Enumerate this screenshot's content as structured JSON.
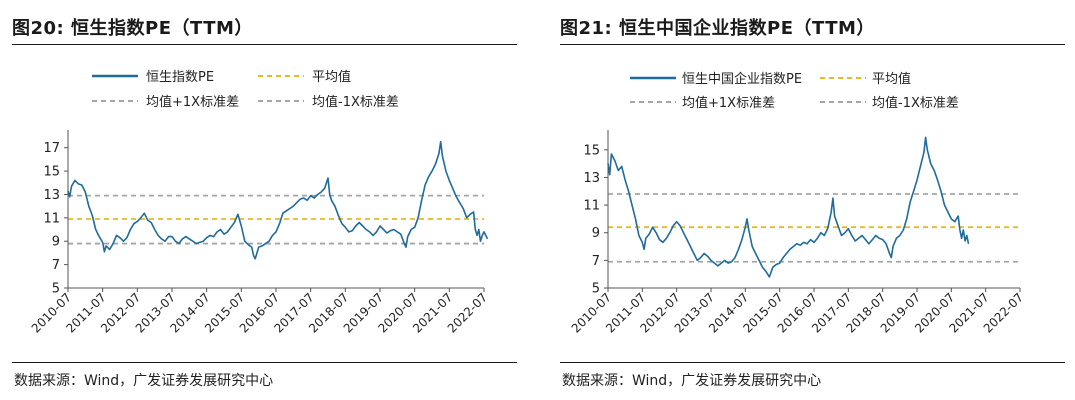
{
  "colors": {
    "series": "#1f6b9c",
    "mean": "#e8b923",
    "band": "#a6a6a6",
    "axis": "#555555"
  },
  "legend_labels": {
    "series_left": "恒生指数PE",
    "series_right": "恒生中国企业指数PE",
    "mean": "平均值",
    "upper": "均值+1X标准差",
    "lower": "均值-1X标准差"
  },
  "source_text": "数据来源：Wind，广发证券发展研究中心",
  "chart_data": [
    {
      "title": "图20:  恒生指数PE（TTM）",
      "type": "line",
      "x_ticks": [
        "2010-07",
        "2011-07",
        "2012-07",
        "2013-07",
        "2014-07",
        "2015-07",
        "2016-07",
        "2017-07",
        "2018-07",
        "2019-07",
        "2020-07",
        "2021-07",
        "2022-07"
      ],
      "ylim": [
        5,
        18
      ],
      "y_ticks": [
        5,
        7,
        9,
        11,
        13,
        15,
        17
      ],
      "grid": false,
      "legend_position": "top",
      "reference_lines": {
        "mean": 10.9,
        "mean_plus_1sd": 12.9,
        "mean_minus_1sd": 8.8
      },
      "series": [
        {
          "name": "恒生指数PE",
          "points": [
            [
              0.0,
              13.3
            ],
            [
              0.05,
              12.8
            ],
            [
              0.1,
              13.7
            ],
            [
              0.2,
              14.2
            ],
            [
              0.3,
              13.9
            ],
            [
              0.4,
              13.8
            ],
            [
              0.5,
              13.2
            ],
            [
              0.6,
              12.0
            ],
            [
              0.7,
              11.2
            ],
            [
              0.8,
              10.0
            ],
            [
              0.9,
              9.4
            ],
            [
              1.0,
              8.9
            ],
            [
              1.05,
              8.1
            ],
            [
              1.1,
              8.6
            ],
            [
              1.2,
              8.3
            ],
            [
              1.3,
              8.8
            ],
            [
              1.4,
              9.5
            ],
            [
              1.5,
              9.3
            ],
            [
              1.6,
              9.0
            ],
            [
              1.7,
              9.3
            ],
            [
              1.8,
              10.0
            ],
            [
              1.9,
              10.5
            ],
            [
              2.0,
              10.7
            ],
            [
              2.1,
              11.0
            ],
            [
              2.2,
              11.4
            ],
            [
              2.3,
              10.8
            ],
            [
              2.4,
              10.6
            ],
            [
              2.5,
              10.0
            ],
            [
              2.6,
              9.5
            ],
            [
              2.7,
              9.2
            ],
            [
              2.8,
              9.0
            ],
            [
              2.9,
              9.4
            ],
            [
              3.0,
              9.4
            ],
            [
              3.1,
              9.0
            ],
            [
              3.2,
              8.8
            ],
            [
              3.3,
              9.2
            ],
            [
              3.4,
              9.4
            ],
            [
              3.5,
              9.2
            ],
            [
              3.6,
              9.0
            ],
            [
              3.7,
              8.8
            ],
            [
              3.8,
              8.9
            ],
            [
              3.9,
              9.0
            ],
            [
              4.0,
              9.3
            ],
            [
              4.1,
              9.5
            ],
            [
              4.2,
              9.4
            ],
            [
              4.3,
              9.8
            ],
            [
              4.4,
              10.0
            ],
            [
              4.5,
              9.6
            ],
            [
              4.6,
              9.8
            ],
            [
              4.7,
              10.2
            ],
            [
              4.8,
              10.6
            ],
            [
              4.9,
              11.3
            ],
            [
              5.0,
              10.3
            ],
            [
              5.1,
              9.0
            ],
            [
              5.2,
              8.7
            ],
            [
              5.3,
              8.5
            ],
            [
              5.35,
              7.8
            ],
            [
              5.4,
              7.5
            ],
            [
              5.5,
              8.5
            ],
            [
              5.6,
              8.6
            ],
            [
              5.7,
              8.8
            ],
            [
              5.8,
              9.0
            ],
            [
              5.9,
              9.5
            ],
            [
              6.0,
              9.8
            ],
            [
              6.1,
              10.5
            ],
            [
              6.2,
              11.4
            ],
            [
              6.3,
              11.6
            ],
            [
              6.4,
              11.8
            ],
            [
              6.5,
              12.0
            ],
            [
              6.6,
              12.3
            ],
            [
              6.7,
              12.6
            ],
            [
              6.8,
              12.7
            ],
            [
              6.9,
              12.5
            ],
            [
              7.0,
              12.9
            ],
            [
              7.1,
              12.7
            ],
            [
              7.2,
              13.0
            ],
            [
              7.3,
              13.2
            ],
            [
              7.4,
              13.5
            ],
            [
              7.5,
              14.4
            ],
            [
              7.55,
              13.0
            ],
            [
              7.6,
              12.5
            ],
            [
              7.7,
              12.0
            ],
            [
              7.8,
              11.2
            ],
            [
              7.9,
              10.5
            ],
            [
              8.0,
              10.2
            ],
            [
              8.1,
              9.8
            ],
            [
              8.2,
              9.9
            ],
            [
              8.3,
              10.3
            ],
            [
              8.4,
              10.6
            ],
            [
              8.5,
              10.3
            ],
            [
              8.6,
              10.0
            ],
            [
              8.7,
              9.8
            ],
            [
              8.8,
              9.5
            ],
            [
              8.9,
              9.8
            ],
            [
              9.0,
              10.3
            ],
            [
              9.1,
              10.0
            ],
            [
              9.2,
              9.7
            ],
            [
              9.3,
              9.9
            ],
            [
              9.4,
              10.0
            ],
            [
              9.5,
              9.8
            ],
            [
              9.6,
              9.6
            ],
            [
              9.7,
              8.8
            ],
            [
              9.75,
              8.5
            ],
            [
              9.8,
              9.4
            ],
            [
              9.9,
              10.0
            ],
            [
              10.0,
              10.2
            ],
            [
              10.1,
              11.0
            ],
            [
              10.2,
              12.5
            ],
            [
              10.3,
              13.8
            ],
            [
              10.4,
              14.5
            ],
            [
              10.5,
              15.0
            ],
            [
              10.6,
              15.6
            ],
            [
              10.7,
              16.5
            ],
            [
              10.75,
              17.5
            ],
            [
              10.8,
              16.3
            ],
            [
              10.9,
              15.0
            ],
            [
              11.0,
              14.2
            ],
            [
              11.1,
              13.5
            ],
            [
              11.2,
              12.8
            ],
            [
              11.3,
              12.3
            ],
            [
              11.4,
              11.8
            ],
            [
              11.5,
              11.0
            ],
            [
              11.6,
              11.3
            ],
            [
              11.7,
              11.5
            ],
            [
              11.75,
              10.0
            ],
            [
              11.8,
              9.5
            ],
            [
              11.85,
              10.0
            ],
            [
              11.9,
              9.0
            ],
            [
              11.95,
              9.5
            ],
            [
              12.0,
              9.8
            ],
            [
              12.1,
              9.2
            ]
          ]
        }
      ]
    },
    {
      "title": "图21:  恒生中国企业指数PE（TTM）",
      "type": "line",
      "x_ticks": [
        "2010-07",
        "2011-07",
        "2012-07",
        "2013-07",
        "2014-07",
        "2015-07",
        "2016-07",
        "2017-07",
        "2018-07",
        "2019-07",
        "2020-07",
        "2021-07",
        "2022-07"
      ],
      "ylim": [
        5,
        16
      ],
      "y_ticks": [
        5,
        7,
        9,
        11,
        13,
        15
      ],
      "grid": false,
      "legend_position": "top",
      "reference_lines": {
        "mean": 9.4,
        "mean_plus_1sd": 11.8,
        "mean_minus_1sd": 6.9
      },
      "series": [
        {
          "name": "恒生中国企业指数PE",
          "points": [
            [
              0.0,
              14.0
            ],
            [
              0.05,
              13.2
            ],
            [
              0.1,
              14.7
            ],
            [
              0.2,
              14.2
            ],
            [
              0.3,
              13.5
            ],
            [
              0.4,
              13.8
            ],
            [
              0.5,
              12.8
            ],
            [
              0.6,
              12.0
            ],
            [
              0.7,
              11.0
            ],
            [
              0.8,
              10.0
            ],
            [
              0.9,
              8.8
            ],
            [
              1.0,
              8.3
            ],
            [
              1.05,
              7.8
            ],
            [
              1.1,
              8.6
            ],
            [
              1.2,
              8.9
            ],
            [
              1.3,
              9.4
            ],
            [
              1.4,
              9.0
            ],
            [
              1.5,
              8.5
            ],
            [
              1.6,
              8.3
            ],
            [
              1.7,
              8.6
            ],
            [
              1.8,
              9.0
            ],
            [
              1.9,
              9.5
            ],
            [
              2.0,
              9.8
            ],
            [
              2.1,
              9.5
            ],
            [
              2.2,
              9.0
            ],
            [
              2.3,
              8.5
            ],
            [
              2.4,
              8.0
            ],
            [
              2.5,
              7.5
            ],
            [
              2.6,
              7.0
            ],
            [
              2.7,
              7.2
            ],
            [
              2.8,
              7.5
            ],
            [
              2.9,
              7.3
            ],
            [
              3.0,
              7.0
            ],
            [
              3.1,
              6.8
            ],
            [
              3.2,
              6.6
            ],
            [
              3.3,
              6.8
            ],
            [
              3.4,
              7.0
            ],
            [
              3.5,
              6.8
            ],
            [
              3.6,
              6.9
            ],
            [
              3.7,
              7.2
            ],
            [
              3.8,
              7.8
            ],
            [
              3.9,
              8.5
            ],
            [
              4.0,
              9.4
            ],
            [
              4.05,
              10.0
            ],
            [
              4.1,
              9.2
            ],
            [
              4.2,
              8.0
            ],
            [
              4.3,
              7.5
            ],
            [
              4.4,
              7.0
            ],
            [
              4.5,
              6.5
            ],
            [
              4.6,
              6.2
            ],
            [
              4.7,
              5.8
            ],
            [
              4.8,
              6.5
            ],
            [
              4.9,
              6.7
            ],
            [
              5.0,
              6.8
            ],
            [
              5.1,
              7.2
            ],
            [
              5.2,
              7.5
            ],
            [
              5.3,
              7.8
            ],
            [
              5.4,
              8.0
            ],
            [
              5.5,
              8.2
            ],
            [
              5.6,
              8.1
            ],
            [
              5.7,
              8.3
            ],
            [
              5.8,
              8.2
            ],
            [
              5.9,
              8.5
            ],
            [
              6.0,
              8.3
            ],
            [
              6.1,
              8.6
            ],
            [
              6.2,
              9.0
            ],
            [
              6.3,
              8.8
            ],
            [
              6.4,
              9.3
            ],
            [
              6.5,
              10.5
            ],
            [
              6.55,
              11.5
            ],
            [
              6.6,
              10.2
            ],
            [
              6.7,
              9.5
            ],
            [
              6.8,
              8.8
            ],
            [
              6.9,
              9.0
            ],
            [
              7.0,
              9.3
            ],
            [
              7.1,
              8.8
            ],
            [
              7.2,
              8.4
            ],
            [
              7.3,
              8.6
            ],
            [
              7.4,
              8.8
            ],
            [
              7.5,
              8.5
            ],
            [
              7.6,
              8.2
            ],
            [
              7.7,
              8.5
            ],
            [
              7.8,
              8.8
            ],
            [
              7.9,
              8.6
            ],
            [
              8.0,
              8.5
            ],
            [
              8.1,
              8.2
            ],
            [
              8.2,
              7.5
            ],
            [
              8.25,
              7.2
            ],
            [
              8.3,
              8.0
            ],
            [
              8.4,
              8.6
            ],
            [
              8.5,
              8.8
            ],
            [
              8.6,
              9.2
            ],
            [
              8.7,
              10.0
            ],
            [
              8.8,
              11.2
            ],
            [
              8.9,
              12.0
            ],
            [
              9.0,
              12.8
            ],
            [
              9.1,
              13.8
            ],
            [
              9.2,
              14.8
            ],
            [
              9.25,
              15.9
            ],
            [
              9.3,
              15.0
            ],
            [
              9.4,
              14.0
            ],
            [
              9.5,
              13.5
            ],
            [
              9.6,
              12.8
            ],
            [
              9.7,
              12.0
            ],
            [
              9.8,
              11.0
            ],
            [
              9.9,
              10.5
            ],
            [
              10.0,
              10.0
            ],
            [
              10.1,
              9.8
            ],
            [
              10.2,
              10.2
            ],
            [
              10.25,
              9.2
            ],
            [
              10.3,
              8.6
            ],
            [
              10.35,
              9.2
            ],
            [
              10.4,
              8.4
            ],
            [
              10.45,
              8.8
            ],
            [
              10.5,
              8.2
            ]
          ]
        }
      ]
    }
  ]
}
